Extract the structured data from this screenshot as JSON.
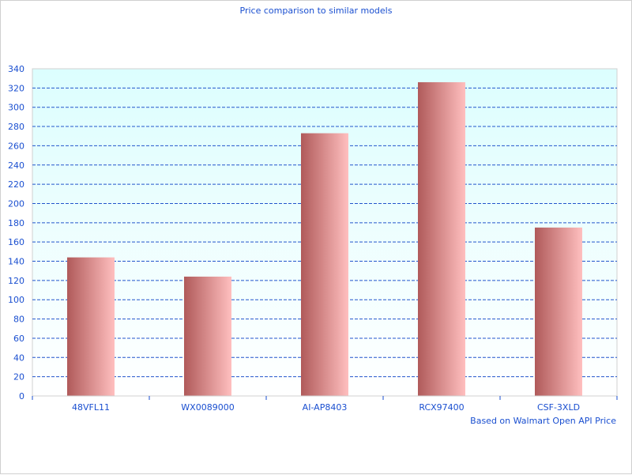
{
  "chart_data": {
    "type": "bar",
    "title": "Price comparison to similar models",
    "xlabel": "Based on Walmart Open API Price",
    "ylabel": "",
    "categories": [
      "48VFL11",
      "WX0089000",
      "AI-AP8403",
      "RCX97400",
      "CSF-3XLD"
    ],
    "values": [
      144,
      124,
      273,
      326,
      175
    ],
    "ylim": [
      0,
      340
    ],
    "yticks": [
      0,
      20,
      40,
      60,
      80,
      100,
      120,
      140,
      160,
      180,
      200,
      220,
      240,
      260,
      280,
      300,
      320,
      340
    ],
    "grid": true,
    "legend": "none",
    "colors": {
      "bar_dark": "#b05a5a",
      "bar_light": "#ffbfbf",
      "text": "#1a4fd0",
      "grid": "#2255cc",
      "plot_bg_top": "#dcfefe",
      "plot_bg_bottom": "#ffffff"
    }
  }
}
